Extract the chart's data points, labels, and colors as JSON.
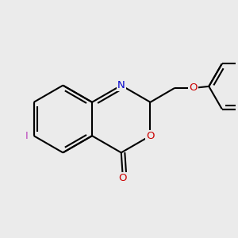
{
  "bg_color": "#ebebeb",
  "bond_color": "#000000",
  "bond_width": 1.5,
  "dbo": 0.055,
  "atom_colors": {
    "N": "#0000cc",
    "O": "#cc0000",
    "I": "#bb44bb",
    "C": "#000000"
  },
  "font_size_atom": 9.5,
  "bl": 0.72
}
